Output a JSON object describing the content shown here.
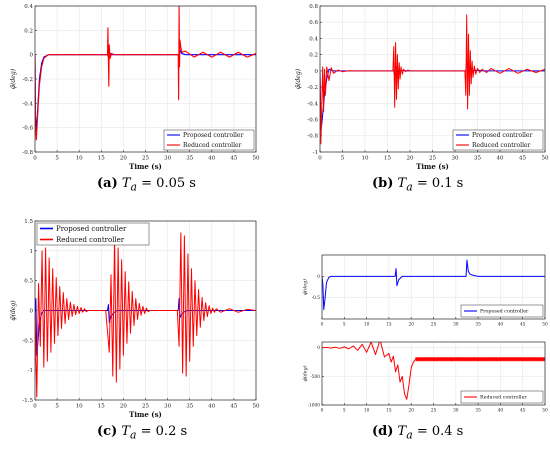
{
  "captions": [
    {
      "letter": "(a)",
      "var": "T",
      "sub": "a",
      "eq": "= 0.05 s"
    },
    {
      "letter": "(b)",
      "var": "T",
      "sub": "a",
      "eq": "= 0.1 s"
    },
    {
      "letter": "(c)",
      "var": "T",
      "sub": "a",
      "eq": "= 0.2 s"
    },
    {
      "letter": "(d)",
      "var": "T",
      "sub": "a",
      "eq": "= 0.4 s"
    }
  ],
  "colors": {
    "proposed": "#0000ff",
    "reduced": "#ff0000",
    "grid": "#e6e6e6",
    "axis": "#262626"
  },
  "chart_data": [
    {
      "type": "line",
      "panel": "a",
      "xlabel": "Time (s)",
      "ylabel": "φ̃(deg)",
      "xlim": [
        0,
        50
      ],
      "ylim": [
        -0.8,
        0.4
      ],
      "xticks": [
        "0",
        "5",
        "10",
        "15",
        "20",
        "25",
        "30",
        "35",
        "40",
        "45",
        "50"
      ],
      "yticks": [
        "-0.8",
        "-0.6",
        "-0.4",
        "-0.2",
        "0",
        "0.2",
        "0.4"
      ],
      "grid": true,
      "legend_position": "bottom-right",
      "series": [
        {
          "name": "Proposed controller",
          "x": [
            0,
            0.1,
            0.3,
            0.6,
            1,
            1.5,
            2,
            3,
            5,
            10,
            16.4,
            16.6,
            16.8,
            17.2,
            18,
            25,
            32.5,
            32.6,
            32.8,
            33.2,
            34,
            37,
            40,
            50
          ],
          "y": [
            0,
            -0.5,
            -0.62,
            -0.45,
            -0.2,
            -0.07,
            -0.02,
            0,
            0,
            0,
            0,
            -0.02,
            0.02,
            0,
            0,
            0,
            0,
            -0.03,
            0.04,
            0.01,
            0,
            0,
            0,
            0
          ]
        },
        {
          "name": "Reduced controller",
          "x": [
            0,
            0.1,
            0.3,
            0.6,
            1,
            1.5,
            2,
            3,
            5,
            10,
            16.4,
            16.5,
            16.6,
            16.7,
            16.8,
            17,
            17.3,
            18,
            25,
            32.4,
            32.5,
            32.6,
            32.7,
            32.8,
            33,
            33.3,
            34,
            36,
            38,
            40,
            42,
            44,
            46,
            48,
            50
          ],
          "y": [
            0,
            -0.6,
            -0.7,
            -0.5,
            -0.25,
            -0.1,
            -0.03,
            0,
            0,
            0,
            0,
            0.22,
            -0.05,
            -0.26,
            0.08,
            -0.03,
            0.01,
            0,
            0,
            0,
            -0.37,
            0.4,
            -0.1,
            0.12,
            0.06,
            0.02,
            0.03,
            -0.02,
            0.02,
            -0.02,
            0.02,
            -0.02,
            0.02,
            -0.02,
            0.01
          ]
        }
      ]
    },
    {
      "type": "line",
      "panel": "b",
      "xlabel": "Time (s)",
      "ylabel": "φ̃(deg)",
      "xlim": [
        0,
        50
      ],
      "ylim": [
        -1,
        0.8
      ],
      "xticks": [
        "0",
        "5",
        "10",
        "15",
        "20",
        "25",
        "30",
        "35",
        "40",
        "45",
        "50"
      ],
      "yticks": [
        "-1",
        "-0.8",
        "-0.6",
        "-0.4",
        "-0.2",
        "0",
        "0.2",
        "0.4",
        "0.6",
        "0.8"
      ],
      "grid": true,
      "legend_position": "bottom-right",
      "series": [
        {
          "name": "Proposed controller",
          "x": [
            0,
            0.2,
            0.5,
            1,
            1.5,
            2,
            3,
            4,
            6,
            10,
            16.4,
            16.6,
            17,
            17.5,
            18,
            19,
            25,
            32.4,
            32.6,
            33,
            33.5,
            34,
            35,
            36,
            40,
            50
          ],
          "y": [
            0,
            -0.75,
            -0.6,
            -0.3,
            -0.1,
            0.02,
            0,
            0,
            0,
            0,
            0,
            -0.08,
            0.05,
            -0.02,
            0.01,
            0,
            0,
            0,
            0.12,
            0.06,
            0.02,
            0,
            0.01,
            0,
            0,
            0
          ]
        },
        {
          "name": "Reduced controller",
          "x": [
            0,
            0.2,
            0.4,
            0.6,
            0.8,
            1,
            1.2,
            1.5,
            2,
            2.5,
            3,
            4,
            5,
            6,
            8,
            10,
            16.2,
            16.4,
            16.6,
            16.8,
            17,
            17.2,
            17.4,
            17.6,
            17.8,
            18,
            18.3,
            18.6,
            19,
            19.5,
            20,
            21,
            25,
            32.2,
            32.4,
            32.6,
            32.8,
            33,
            33.2,
            33.4,
            33.6,
            33.8,
            34,
            34.3,
            34.6,
            35,
            35.5,
            36,
            37,
            38,
            40,
            42,
            44,
            46,
            48,
            50
          ],
          "y": [
            0,
            -0.9,
            -0.4,
            0.05,
            -0.5,
            0.02,
            -0.3,
            0.05,
            -0.12,
            0.04,
            -0.03,
            0.01,
            -0.01,
            0,
            0,
            0,
            0,
            0.3,
            -0.45,
            0.35,
            -0.35,
            0.2,
            -0.22,
            0.1,
            -0.1,
            0.05,
            -0.04,
            0.02,
            -0.01,
            0.01,
            0,
            0,
            0,
            0,
            -0.3,
            0.69,
            -0.47,
            0.45,
            -0.3,
            0.25,
            -0.16,
            0.12,
            -0.08,
            0.06,
            -0.04,
            0.03,
            -0.02,
            0.02,
            -0.02,
            0.03,
            -0.03,
            0.03,
            -0.03,
            0.02,
            -0.02,
            0.02
          ]
        }
      ]
    },
    {
      "type": "line",
      "panel": "c",
      "xlabel": "Time (s)",
      "ylabel": "φ̃(deg)",
      "xlim": [
        0,
        50
      ],
      "ylim": [
        -1.5,
        1.5
      ],
      "xticks": [
        "0",
        "5",
        "10",
        "15",
        "20",
        "25",
        "30",
        "35",
        "40",
        "45",
        "50"
      ],
      "yticks": [
        "-1.5",
        "-1",
        "-0.5",
        "0",
        "0.5",
        "1",
        "1.5"
      ],
      "grid": true,
      "legend_position": "top-left",
      "series": [
        {
          "name": "Proposed controller",
          "x": [
            0,
            0.2,
            0.4,
            0.7,
            1,
            1.5,
            2,
            3,
            5,
            10,
            16.4,
            16.6,
            16.8,
            17.2,
            17.8,
            18.5,
            25,
            32.4,
            32.6,
            32.8,
            33.2,
            33.8,
            34.5,
            40,
            50
          ],
          "y": [
            0,
            0.2,
            -0.75,
            -0.5,
            -0.2,
            -0.05,
            0,
            0,
            0,
            0,
            0,
            0.1,
            -0.2,
            -0.1,
            -0.04,
            0,
            0,
            0,
            0.2,
            -0.12,
            -0.06,
            -0.02,
            0,
            0,
            0
          ]
        },
        {
          "name": "Reduced controller",
          "x": [
            0,
            0.4,
            0.8,
            1.2,
            1.6,
            2.0,
            2.4,
            2.8,
            3.2,
            3.6,
            4.0,
            4.4,
            4.8,
            5.2,
            5.6,
            6.0,
            6.4,
            6.8,
            7.2,
            7.6,
            8.0,
            8.4,
            8.8,
            9.2,
            9.6,
            10.0,
            10.4,
            10.8,
            11.2,
            11.6,
            12,
            13,
            16,
            16.8,
            17.2,
            17.6,
            18.0,
            18.4,
            18.8,
            19.2,
            19.6,
            20.0,
            20.4,
            20.8,
            21.2,
            21.6,
            22.0,
            22.4,
            22.8,
            23.2,
            23.6,
            24.0,
            24.4,
            24.8,
            25.2,
            25.6,
            26,
            27,
            32.2,
            32.6,
            33.0,
            33.4,
            33.8,
            34.2,
            34.6,
            35.0,
            35.4,
            35.8,
            36.2,
            36.6,
            37.0,
            37.4,
            37.8,
            38.2,
            38.6,
            39.0,
            39.4,
            39.8,
            40.2,
            40.6,
            41,
            42,
            44,
            46,
            48,
            50
          ],
          "y": [
            0,
            -1.45,
            0.45,
            -0.6,
            1.0,
            -0.95,
            1.05,
            -0.85,
            0.88,
            -0.7,
            0.7,
            -0.55,
            0.55,
            -0.42,
            0.4,
            -0.3,
            0.3,
            -0.22,
            0.2,
            -0.15,
            0.14,
            -0.1,
            0.1,
            -0.07,
            0.07,
            -0.05,
            0.05,
            -0.03,
            0.03,
            -0.02,
            0,
            0,
            0,
            -0.7,
            0.6,
            -1.1,
            1.25,
            -1.2,
            1.05,
            -0.98,
            0.85,
            -0.75,
            0.65,
            -0.55,
            0.48,
            -0.38,
            0.32,
            -0.25,
            0.2,
            -0.15,
            0.12,
            -0.08,
            0.07,
            -0.05,
            0.04,
            -0.02,
            0,
            0,
            0,
            -0.6,
            1.3,
            -1.05,
            1.25,
            -1.1,
            0.95,
            -0.85,
            0.7,
            -0.6,
            0.5,
            -0.42,
            0.35,
            -0.28,
            0.22,
            -0.17,
            0.13,
            -0.1,
            0.08,
            -0.05,
            0.04,
            -0.03,
            0.03,
            -0.03,
            0.03,
            -0.03,
            0.02,
            0
          ]
        }
      ]
    },
    {
      "type": "line",
      "panel": "d-top",
      "xlabel": "",
      "ylabel": "φ̃(deg)",
      "xlim": [
        0,
        50
      ],
      "ylim": [
        -1,
        0.5
      ],
      "xticks": [
        "0",
        "5",
        "10",
        "15",
        "20",
        "25",
        "30",
        "35",
        "40",
        "45",
        "50"
      ],
      "yticks": [
        "-0.5",
        "0"
      ],
      "grid": true,
      "legend_position": "bottom-right",
      "series": [
        {
          "name": "Proposed controller",
          "x": [
            0,
            0.2,
            0.4,
            0.7,
            1,
            1.5,
            2,
            3,
            5,
            10,
            16.4,
            16.6,
            16.8,
            17.2,
            18,
            25,
            32.3,
            32.5,
            32.8,
            33.2,
            34,
            35,
            50
          ],
          "y": [
            0,
            -0.2,
            -0.78,
            -0.5,
            -0.15,
            -0.03,
            0,
            0,
            0,
            0,
            0,
            0.18,
            -0.22,
            -0.08,
            0,
            0,
            0,
            0.38,
            0.12,
            0.05,
            0.02,
            0,
            0
          ]
        }
      ]
    },
    {
      "type": "line",
      "panel": "d-bottom",
      "xlabel": "",
      "ylabel": "φ̃(deg)",
      "xlim": [
        0,
        50
      ],
      "ylim": [
        -1000,
        100
      ],
      "xticks": [
        "0",
        "5",
        "10",
        "15",
        "20",
        "25",
        "30",
        "35",
        "40",
        "45",
        "50"
      ],
      "yticks": [
        "-1000",
        "-500",
        "0"
      ],
      "grid": true,
      "legend_position": "bottom-right",
      "series": [
        {
          "name": "Reduced controller",
          "x": [
            0,
            1,
            2,
            3,
            4,
            5,
            6,
            7,
            8,
            9,
            10,
            11,
            12,
            13,
            14,
            15,
            15.5,
            16,
            16.5,
            17,
            17.5,
            18,
            18.5,
            19,
            19.5,
            20,
            20.5,
            21,
            22,
            50
          ],
          "y": [
            0,
            5,
            -5,
            8,
            -10,
            15,
            -20,
            30,
            -45,
            60,
            -80,
            100,
            -120,
            140,
            -160,
            -100,
            -250,
            -150,
            -420,
            -300,
            -600,
            -500,
            -800,
            -900,
            -650,
            -350,
            -250,
            -200,
            -200,
            -200
          ]
        }
      ]
    }
  ]
}
